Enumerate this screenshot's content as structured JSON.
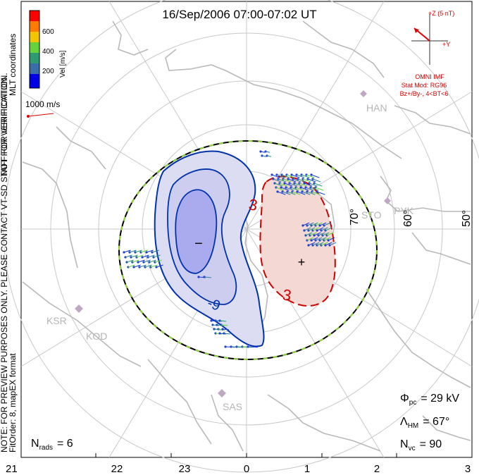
{
  "title": "16/Sep/2006 07:00-07:02 UT",
  "colorbar": {
    "label": "Vel [m/s]",
    "ticks": [
      "600",
      "400",
      "200"
    ],
    "colors": [
      "#ff0000",
      "#ff7a00",
      "#f2c600",
      "#66d23c",
      "#2f9b73",
      "#3a6ea8",
      "#0000e6"
    ]
  },
  "coordinates_label": "MLT coordinates",
  "verification_notice": "NOT FOR VERIFICATION.",
  "verification_notice_2": "NOTE: FOR PREVIEW PURPOSES ONLY. PLEASE CONTACT VT-SD STAFF FOR VERIFICATION.",
  "fit_info": "FitOrder: 8, mapEX format",
  "scale_vector_label": "1000 m/s",
  "imf": {
    "z_label": "+Z (5 nT)",
    "y_label": "+Y",
    "title": "OMNI IMF",
    "model": "Stat Mod: RG96",
    "condition": "Bz+/By-, 4<BT<6"
  },
  "latitude_labels": [
    "70°",
    "60°",
    "50°"
  ],
  "stations": [
    "HAN",
    "STO",
    "PYK",
    "KSR",
    "KOD",
    "SAS"
  ],
  "contours": {
    "negative_label": "-9",
    "positive_label": "3",
    "min_symbol": "−",
    "max_symbol": "+"
  },
  "stats": {
    "phi_symbol": "Φ",
    "phi_sub": "pc",
    "phi_value": "= 29 kV",
    "lambda_symbol": "Λ",
    "lambda_sub": "HM",
    "lambda_value": "= 67°",
    "nvc_symbol": "N",
    "nvc_sub": "vc",
    "nvc_value": "= 90",
    "nrads_symbol": "N",
    "nrads_sub": "rads",
    "nrads_value": "= 6"
  },
  "mlt_axis_labels": [
    "21",
    "22",
    "23",
    "0",
    "1",
    "2",
    "3"
  ]
}
